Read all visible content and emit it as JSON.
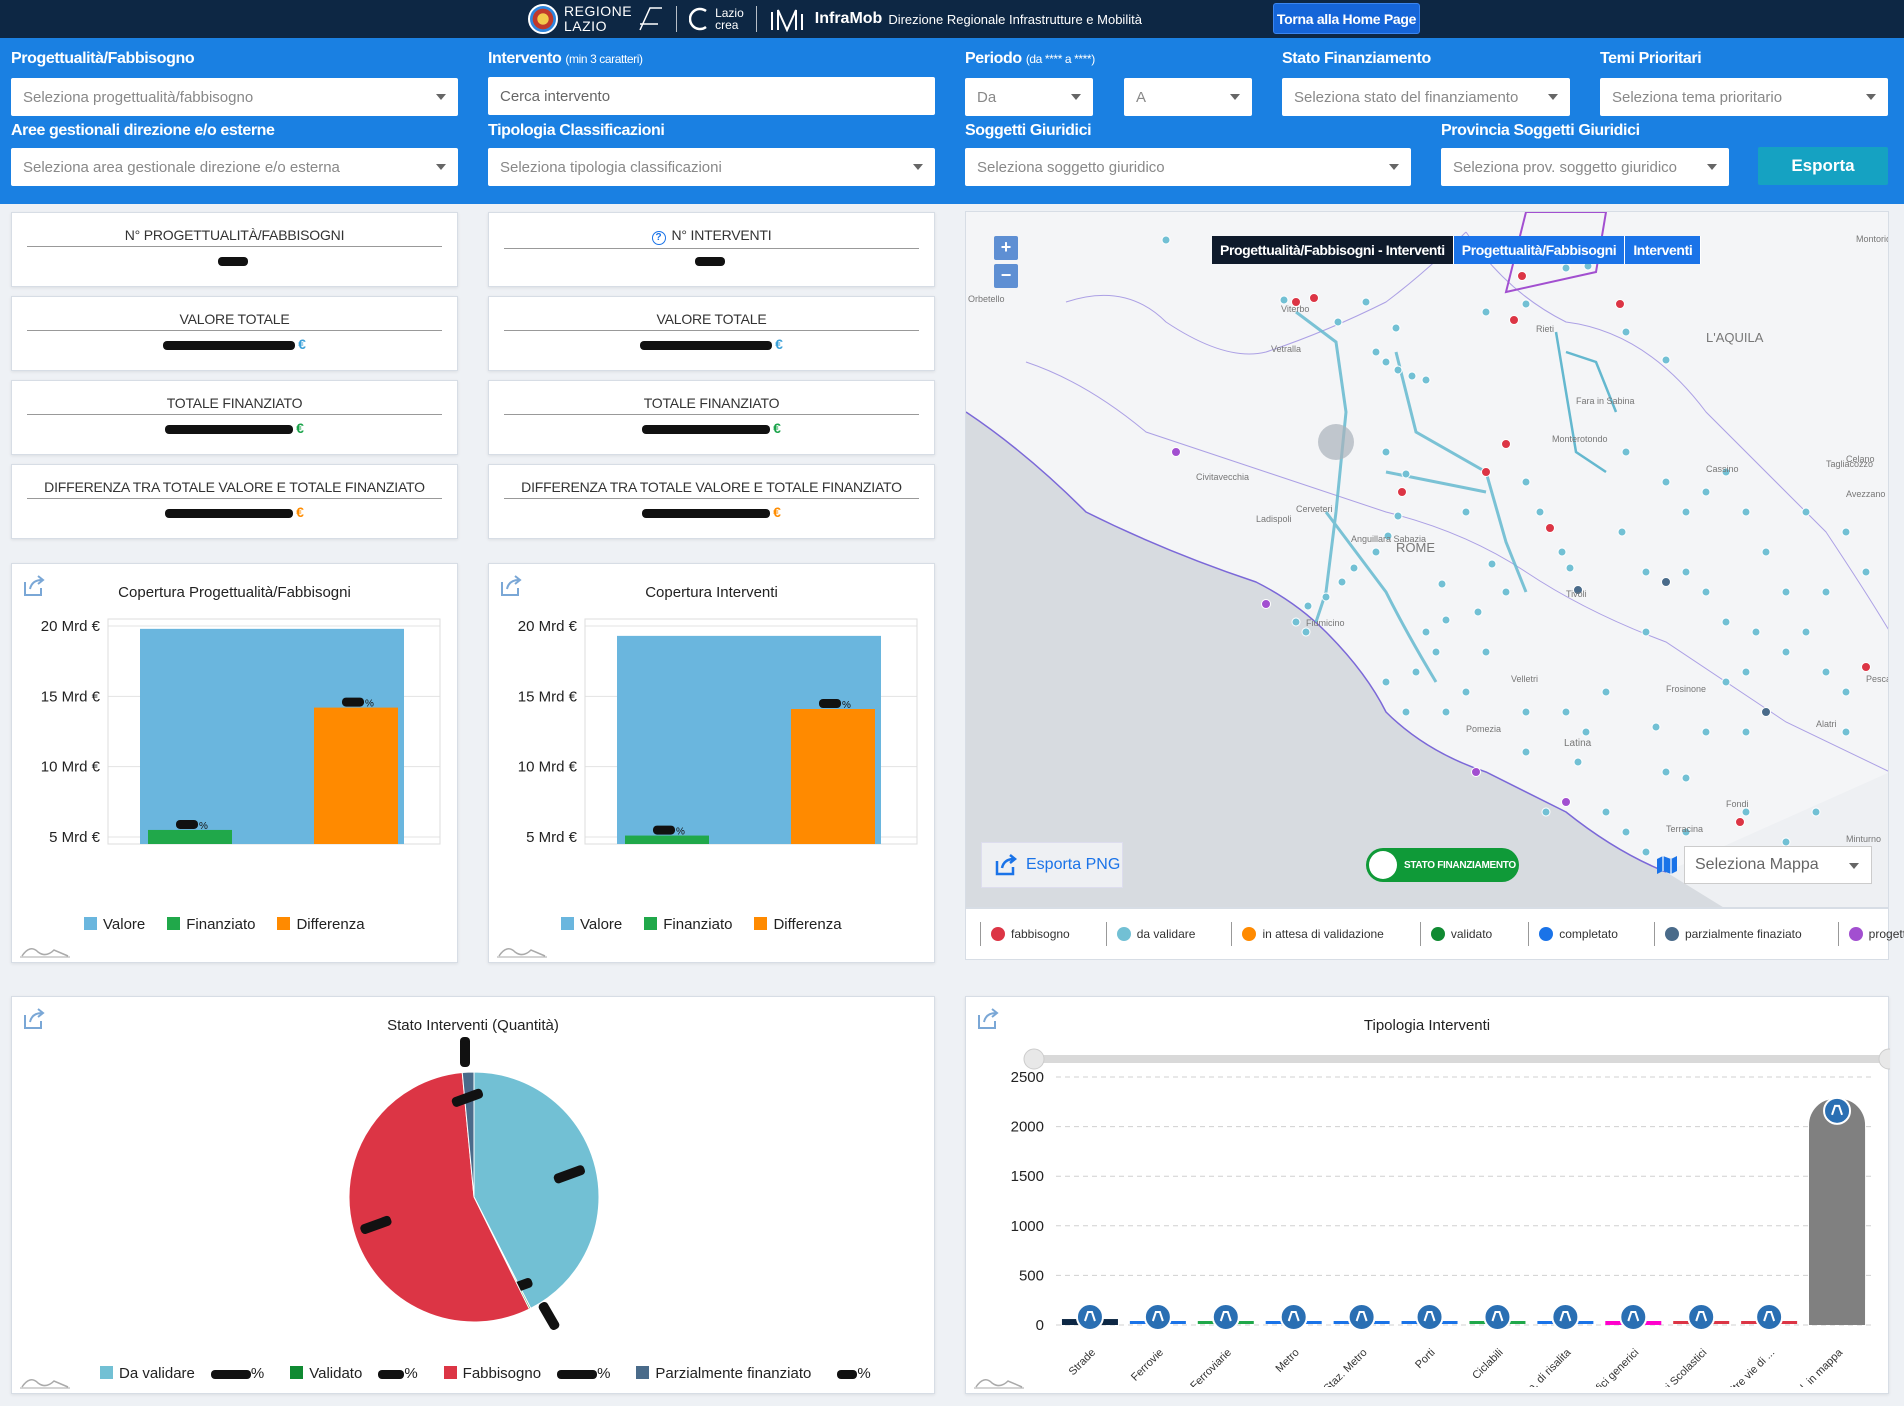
{
  "header": {
    "regione_line1": "Regione",
    "regione_line2": "Lazio",
    "lazio_crea_line1": "Lazio",
    "lazio_crea_line2": "crea",
    "app_name": "InfraMob",
    "app_subtitle": "Direzione Regionale Infrastrutture e Mobilità",
    "home_button": "Torna alla Home Page"
  },
  "filters": {
    "progettualita": {
      "label": "Progettualità/Fabbisogno",
      "placeholder": "Seleziona progettualità/fabbisogno"
    },
    "intervento": {
      "label": "Intervento",
      "note": "(min 3 caratteri)",
      "placeholder": "Cerca intervento"
    },
    "periodo": {
      "label": "Periodo",
      "note": "(da **** a ****)",
      "from": "Da",
      "to": "A"
    },
    "stato": {
      "label": "Stato Finanziamento",
      "placeholder": "Seleziona stato del finanziamento"
    },
    "temi": {
      "label": "Temi Prioritari",
      "placeholder": "Seleziona tema prioritario"
    },
    "aree": {
      "label": "Aree gestionali direzione e/o esterne",
      "placeholder": "Seleziona area gestionale direzione e/o esterna"
    },
    "tipologia": {
      "label": "Tipologia Classificazioni",
      "placeholder": "Seleziona tipologia classificazioni"
    },
    "soggetti": {
      "label": "Soggetti Giuridici",
      "placeholder": "Seleziona soggetto giuridico"
    },
    "provincia": {
      "label": "Provincia Soggetti Giuridici",
      "placeholder": "Seleziona prov. soggetto giuridico"
    },
    "export_button": "Esporta"
  },
  "kpi_left": [
    {
      "title": "N° PROGETTUALITÀ/FABBISOGNI",
      "euro": "",
      "color": "#1a73e8"
    },
    {
      "title": "VALORE TOTALE",
      "euro": "€",
      "color": "#3aa0d8"
    },
    {
      "title": "TOTALE FINANZIATO",
      "euro": "€",
      "color": "#1aa34a"
    },
    {
      "title": "DIFFERENZA TRA TOTALE VALORE E TOTALE FINANZIATO",
      "euro": "€",
      "color": "#ff8c00"
    }
  ],
  "kpi_right": [
    {
      "title": "N° INTERVENTI",
      "euro": "",
      "color": "#1a73e8"
    },
    {
      "title": "VALORE TOTALE",
      "euro": "€",
      "color": "#3aa0d8"
    },
    {
      "title": "TOTALE FINANZIATO",
      "euro": "€",
      "color": "#1aa34a"
    },
    {
      "title": "DIFFERENZA TRA TOTALE VALORE E TOTALE FINANZIATO",
      "euro": "€",
      "color": "#ff8c00"
    }
  ],
  "colors": {
    "valore": "#6ab6de",
    "finanziato": "#20a84a",
    "differenza": "#ff8a00",
    "da_validare": "#72c0d4",
    "fabbisogno": "#dc3545",
    "parzialmente": "#4a6b8a",
    "bar_grey": "#808080",
    "brand": "#1a80e2"
  },
  "chart_data": [
    {
      "type": "bar",
      "title": "Copertura Progettualità/Fabbisogni",
      "categories": [
        "Valore",
        "Finanziato",
        "Differenza"
      ],
      "values": [
        19.8,
        5.5,
        14.2
      ],
      "ytick_labels": [
        "5 Mrd €",
        "10 Mrd €",
        "15 Mrd €",
        "20 Mrd €"
      ],
      "yticks": [
        5,
        10,
        15,
        20
      ],
      "ylim": [
        4.5,
        20.5
      ],
      "legend": [
        "Valore",
        "Finanziato",
        "Differenza"
      ]
    },
    {
      "type": "bar",
      "title": "Copertura Interventi",
      "categories": [
        "Valore",
        "Finanziato",
        "Differenza"
      ],
      "values": [
        19.3,
        5.1,
        14.1
      ],
      "ytick_labels": [
        "5 Mrd €",
        "10 Mrd €",
        "15 Mrd €",
        "20 Mrd €"
      ],
      "yticks": [
        5,
        10,
        15,
        20
      ],
      "ylim": [
        4.5,
        20.5
      ],
      "legend": [
        "Valore",
        "Finanziato",
        "Differenza"
      ]
    },
    {
      "type": "pie",
      "title": "Stato Interventi (Quantità)",
      "labels": [
        "Da validare",
        "Validato",
        "Fabbisogno",
        "Parzialmente finanziato"
      ],
      "values": [
        42.5,
        0.2,
        55.8,
        1.5
      ],
      "legend": [
        "Da validare",
        "Validato",
        "Fabbisogno",
        "Parzialmente finanziato"
      ]
    },
    {
      "type": "bar",
      "title": "Tipologia Interventi",
      "categories": [
        "Strade",
        "Ferrovie",
        "Staz. Ferroviarie",
        "Metro",
        "Staz. Metro",
        "Porti",
        "Ciclabili",
        "Imp. di risalita",
        "Edifici generici",
        "Edifici Scolastici",
        "Altre vie di ...",
        "N.d. in mappa"
      ],
      "values": [
        60,
        5,
        3,
        3,
        3,
        2,
        15,
        3,
        40,
        8,
        10,
        2280
      ],
      "bar_colors": [
        "#0d2744",
        "#1a73e8",
        "#20a84a",
        "#1a73e8",
        "#1a73e8",
        "#1a73e8",
        "#20a84a",
        "#1a73e8",
        "#ff00cc",
        "#dc3545",
        "#dc3545",
        "#808080"
      ],
      "yticks": [
        0,
        500,
        1000,
        1500,
        2000,
        2500
      ],
      "ylim": [
        0,
        2500
      ]
    }
  ],
  "map": {
    "tabs": [
      "Progettualità/Fabbisogni - Interventi",
      "Progettualità/Fabbisogni",
      "Interventi"
    ],
    "zoom_in": "+",
    "zoom_out": "−",
    "export_png": "Esporta PNG",
    "toggle_label": "STATO FINANZIAMENTO",
    "map_select": "Seleziona Mappa",
    "places": [
      "L'AQUILA",
      "ROME",
      "Latina",
      "Frosinone",
      "Rieti",
      "Viterbo",
      "Civitavecchia",
      "Fondi",
      "Terracina",
      "Avezzano",
      "Velletri",
      "Pomezia",
      "Tivoli",
      "Anguillara Sabazia",
      "Cerveteri",
      "Ladispoli",
      "Fiumicino",
      "Montorio al Vomano",
      "Celano",
      "Tagliacozzo",
      "Cassino",
      "Alatri",
      "Pescasseroli",
      "Minturno",
      "Fara in Sabina",
      "Monterotondo",
      "Vetralla",
      "Orbetello"
    ]
  },
  "map_legend": [
    {
      "label": "fabbisogno",
      "color": "#dc3545"
    },
    {
      "label": "da validare",
      "color": "#72c0d4"
    },
    {
      "label": "in attesa di validazione",
      "color": "#ff8a00"
    },
    {
      "label": "validato",
      "color": "#108a32"
    },
    {
      "label": "completato",
      "color": "#1a73e8"
    },
    {
      "label": "parzialmente finaziato",
      "color": "#4a6b8a"
    },
    {
      "label": "progetto",
      "color": "#a24fd0"
    }
  ]
}
